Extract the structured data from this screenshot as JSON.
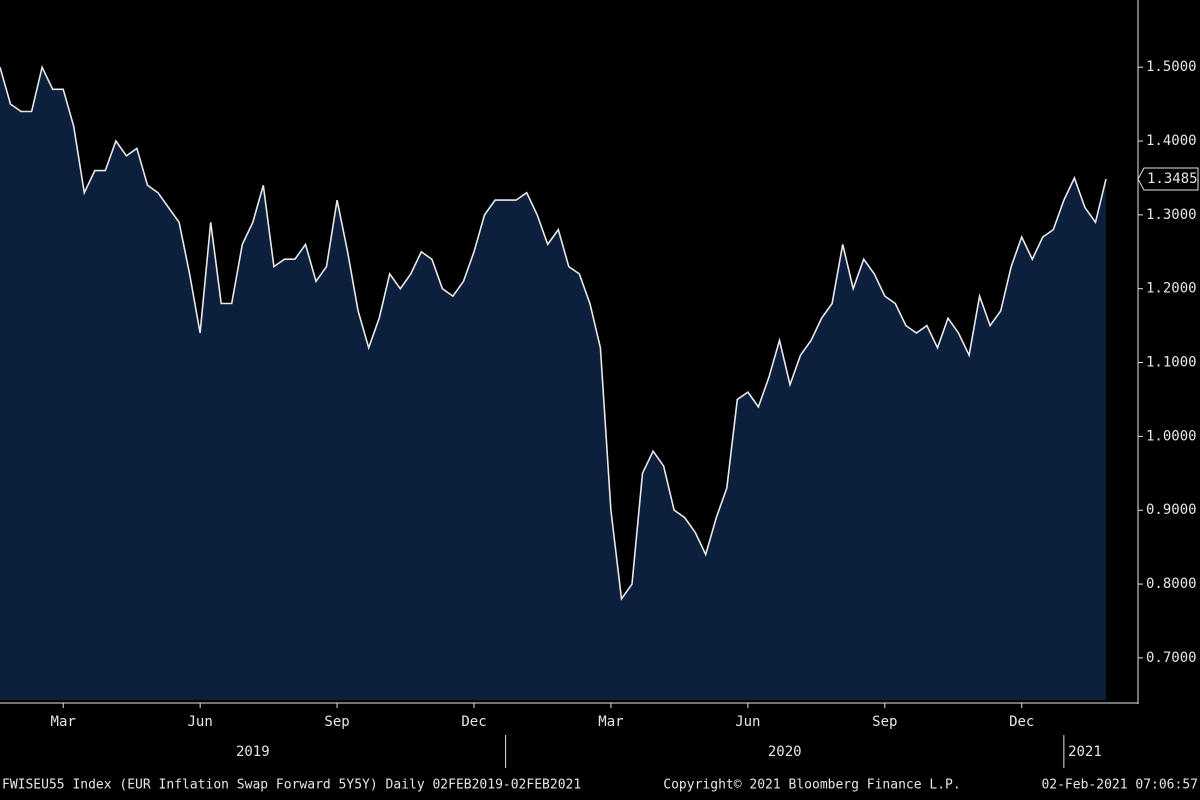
{
  "chart_data": {
    "type": "area",
    "categories": [
      null,
      null,
      null,
      null,
      null,
      null,
      "Mar",
      null,
      null,
      null,
      null,
      null,
      null,
      null,
      null,
      null,
      null,
      null,
      null,
      "Jun",
      null,
      null,
      null,
      null,
      null,
      null,
      null,
      null,
      null,
      null,
      null,
      null,
      "Sep",
      null,
      null,
      null,
      null,
      null,
      null,
      null,
      null,
      null,
      null,
      null,
      null,
      "Dec",
      null,
      null,
      null,
      null,
      null,
      null,
      null,
      null,
      null,
      null,
      null,
      null,
      "Mar",
      null,
      null,
      null,
      null,
      null,
      null,
      null,
      null,
      null,
      null,
      null,
      null,
      "Jun",
      null,
      null,
      null,
      null,
      null,
      null,
      null,
      null,
      null,
      null,
      null,
      null,
      "Sep",
      null,
      null,
      null,
      null,
      null,
      null,
      null,
      null,
      null,
      null,
      null,
      null,
      "Dec",
      null,
      null,
      null,
      null,
      null,
      null,
      null,
      null
    ],
    "year_groups": [
      {
        "label": "2019",
        "start": 0
      },
      {
        "label": "2020",
        "start": 48
      },
      {
        "label": "2021",
        "start": 101
      }
    ],
    "values": [
      1.5,
      1.45,
      1.44,
      1.44,
      1.5,
      1.47,
      1.47,
      1.42,
      1.33,
      1.36,
      1.36,
      1.4,
      1.38,
      1.39,
      1.34,
      1.33,
      1.31,
      1.29,
      1.22,
      1.14,
      1.29,
      1.18,
      1.18,
      1.26,
      1.29,
      1.34,
      1.23,
      1.24,
      1.24,
      1.26,
      1.21,
      1.23,
      1.32,
      1.25,
      1.17,
      1.12,
      1.16,
      1.22,
      1.2,
      1.22,
      1.25,
      1.24,
      1.2,
      1.19,
      1.21,
      1.25,
      1.3,
      1.32,
      1.32,
      1.32,
      1.33,
      1.3,
      1.26,
      1.28,
      1.23,
      1.22,
      1.18,
      1.12,
      0.9,
      0.78,
      0.8,
      0.95,
      0.98,
      0.96,
      0.9,
      0.89,
      0.87,
      0.84,
      0.89,
      0.93,
      1.05,
      1.06,
      1.04,
      1.08,
      1.13,
      1.07,
      1.11,
      1.13,
      1.16,
      1.18,
      1.26,
      1.2,
      1.24,
      1.22,
      1.19,
      1.18,
      1.15,
      1.14,
      1.15,
      1.12,
      1.16,
      1.14,
      1.11,
      1.19,
      1.15,
      1.17,
      1.23,
      1.27,
      1.24,
      1.27,
      1.28,
      1.32,
      1.35,
      1.31,
      1.29,
      1.3485
    ],
    "color": "#0c1f3d",
    "line_color": "#e8e8e8",
    "ylim": [
      0.643,
      1.591
    ],
    "yticks": [
      {
        "value": 0.7,
        "label": "0.7000"
      },
      {
        "value": 0.8,
        "label": "0.8000"
      },
      {
        "value": 0.9,
        "label": "0.9000"
      },
      {
        "value": 1.0,
        "label": "1.0000"
      },
      {
        "value": 1.1,
        "label": "1.1000"
      },
      {
        "value": 1.2,
        "label": "1.2000"
      },
      {
        "value": 1.3,
        "label": "1.3000"
      },
      {
        "value": 1.4,
        "label": "1.4000"
      },
      {
        "value": 1.5,
        "label": "1.5000"
      }
    ],
    "footer": [
      "FWISEU55 Index (EUR Inflation Swap Forward 5Y5Y)  Daily 02FEB2019-02FEB2021",
      "Copyright© 2021 Bloomberg Finance L.P.",
      "02-Feb-2021 07:06:57"
    ]
  }
}
